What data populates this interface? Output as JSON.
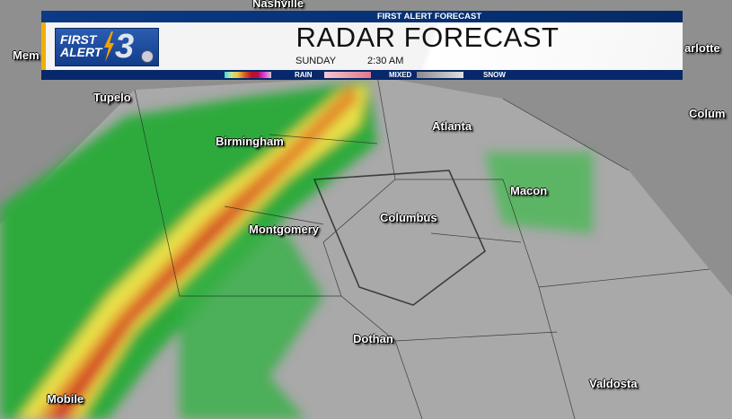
{
  "header": {
    "top_bar": "FIRST ALERT FORECAST",
    "logo_text": [
      "FIRST",
      "ALERT",
      "3"
    ],
    "title": "RADAR FORECAST",
    "day": "SUNDAY",
    "time": "2:30 AM",
    "legend": [
      {
        "label": "RAIN",
        "colors": [
          "#3fd9e6",
          "#c8e88a",
          "#e9c24a",
          "#d3641c",
          "#c4102a",
          "#b0104a",
          "#e83fe0",
          "#c8c8c8"
        ]
      },
      {
        "label": "MIXED",
        "colors": [
          "#f8c6d0",
          "#e07a8c"
        ]
      },
      {
        "label": "SNOW",
        "colors": [
          "#8a8a8a",
          "#e0e0e0"
        ]
      }
    ],
    "colors": {
      "bar": "#07286a",
      "accent": "#f0b000"
    }
  },
  "cities": [
    {
      "name": "Nashville"
    },
    {
      "name": "Mem"
    },
    {
      "name": "Tupelo"
    },
    {
      "name": "Birmingham"
    },
    {
      "name": "Atlanta"
    },
    {
      "name": "arlotte"
    },
    {
      "name": "Colum"
    },
    {
      "name": "Macon"
    },
    {
      "name": "Columbus"
    },
    {
      "name": "Montgomery"
    },
    {
      "name": "Dothan"
    },
    {
      "name": "Mobile"
    },
    {
      "name": "Valdosta"
    }
  ]
}
